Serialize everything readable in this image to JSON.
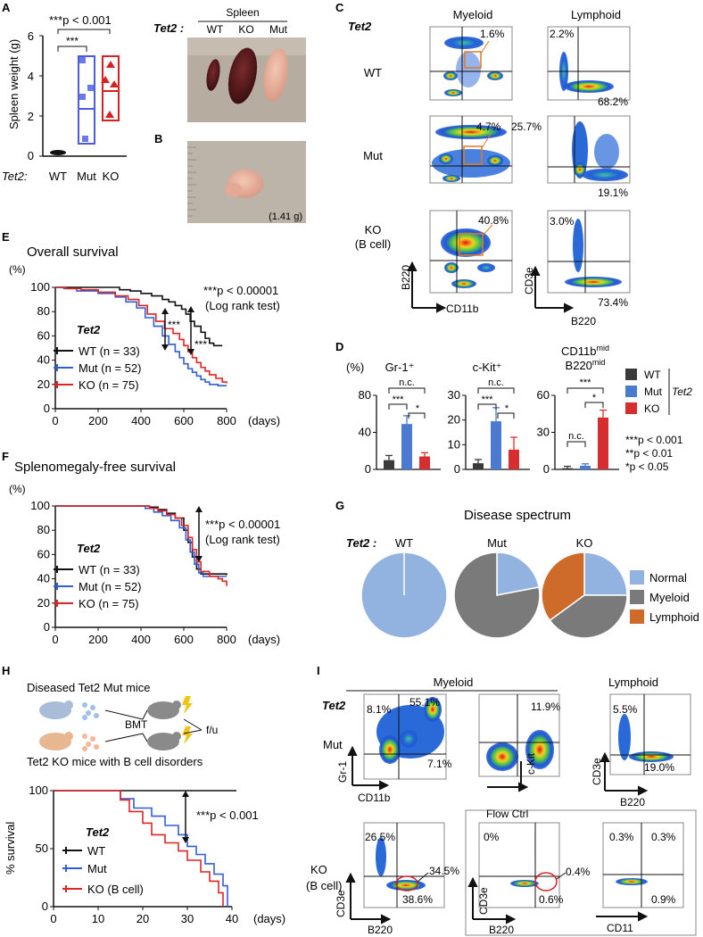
{
  "panels": {
    "A": "A",
    "B": "B",
    "C": "C",
    "D": "D",
    "E": "E",
    "F": "F",
    "G": "G",
    "H": "H",
    "I": "I"
  },
  "genotypes": {
    "wt": "WT",
    "mut": "Mut",
    "ko": "KO",
    "ko_bcell": "KO (B cell)",
    "ko_line1": "KO",
    "ko_line2": "(B cell)"
  },
  "gene": "Tet2",
  "gene_colon": "Tet2 :",
  "gene_colon2": "Tet2:",
  "colors": {
    "wt": "#111111",
    "mut": "#2f5fd8",
    "ko": "#e02424",
    "wt_bar": "#3a3a3a",
    "mut_bar": "#4a7bd0",
    "ko_bar": "#d62e2e",
    "normal": "#92b3df",
    "myeloid": "#7a7a7a",
    "lymphoid": "#cf6b2a"
  },
  "panelA": {
    "sig": "***p < 0.001",
    "sig_bracket": "***",
    "ylabel": "Spleen weight (g)",
    "yticks": [
      "0",
      "2",
      "4",
      "6"
    ],
    "xlabel_prefix": "Tet2:",
    "categories": [
      "WT",
      "Mut",
      "KO"
    ]
  },
  "photo": {
    "spleen_header": "Spleen",
    "gene_label": "Tet2 :",
    "cols": [
      "WT",
      "KO",
      "Mut"
    ],
    "weight": "(1.41 g)"
  },
  "panelC": {
    "gene": "Tet2",
    "col_myeloid": "Myeloid",
    "col_lymphoid": "Lymphoid",
    "rows": [
      "WT",
      "Mut",
      "KO",
      "(B cell)"
    ],
    "myeloid_pct": [
      "1.6%",
      "4.7%",
      "40.8%"
    ],
    "lymphoid_ul": [
      "2.2%",
      "25.7%",
      "3.0%"
    ],
    "lymphoid_lr": [
      "68.2%",
      "19.1%",
      "73.4%"
    ],
    "ax_myeloid_y": "B220",
    "ax_myeloid_x": "CD11b",
    "ax_lymphoid_y": "CD3e",
    "ax_lymphoid_x": "B220"
  },
  "chart_data": [
    {
      "id": "D",
      "type": "bar",
      "ylabel": "(%)",
      "subpanels": [
        {
          "title": "Gr-1⁺",
          "categories": [
            "WT",
            "Mut",
            "KO"
          ],
          "values": [
            10,
            49,
            14
          ],
          "errors": [
            5,
            9,
            4
          ],
          "ylim": [
            0,
            80
          ],
          "yticks": [
            "0",
            "40",
            "80"
          ],
          "sig": [
            "***",
            "*",
            "n.c."
          ]
        },
        {
          "title": "c-Kit⁺",
          "categories": [
            "WT",
            "Mut",
            "KO"
          ],
          "values": [
            2.5,
            19.5,
            8
          ],
          "errors": [
            1.5,
            5.5,
            5
          ],
          "ylim": [
            0,
            30
          ],
          "yticks": [
            "0",
            "10",
            "20",
            "30"
          ],
          "sig": [
            "***",
            "*",
            "n.c."
          ]
        },
        {
          "title": "CD11bᵐⁱᵈ B220ᵐⁱᵈ",
          "categories": [
            "WT",
            "Mut",
            "KO"
          ],
          "values": [
            1,
            3,
            42
          ],
          "errors": [
            1.5,
            1.5,
            6
          ],
          "ylim": [
            0,
            60
          ],
          "yticks": [
            "0",
            "30",
            "60"
          ],
          "sig": [
            "n.c.",
            "***",
            "*"
          ]
        }
      ],
      "legend": [
        "WT",
        "Mut",
        "KO"
      ],
      "legend_group": "Tet2",
      "sig_key": [
        "***p < 0.001",
        "**p < 0.01",
        "*p < 0.05"
      ]
    },
    {
      "id": "E",
      "type": "line",
      "title": "Overall survival",
      "ylabel": "(%)",
      "xlabel": "(days)",
      "xlim": [
        0,
        800
      ],
      "ylim": [
        0,
        100
      ],
      "xticks": [
        "0",
        "200",
        "400",
        "600",
        "800"
      ],
      "yticks": [
        "0",
        "20",
        "40",
        "60",
        "80",
        "100"
      ],
      "series": [
        {
          "name": "WT (n = 33)",
          "points": [
            [
              0,
              100
            ],
            [
              240,
              100
            ],
            [
              300,
              98
            ],
            [
              350,
              97
            ],
            [
              400,
              95
            ],
            [
              450,
              93
            ],
            [
              500,
              90
            ],
            [
              530,
              88
            ],
            [
              560,
              85
            ],
            [
              590,
              82
            ],
            [
              610,
              78
            ],
            [
              630,
              72
            ],
            [
              650,
              68
            ],
            [
              680,
              63
            ],
            [
              700,
              58
            ],
            [
              720,
              54
            ],
            [
              740,
              52
            ],
            [
              780,
              52
            ]
          ]
        },
        {
          "name": "Mut (n = 52)",
          "points": [
            [
              0,
              100
            ],
            [
              40,
              99
            ],
            [
              100,
              97
            ],
            [
              200,
              95
            ],
            [
              280,
              92
            ],
            [
              330,
              88
            ],
            [
              380,
              83
            ],
            [
              420,
              75
            ],
            [
              460,
              68
            ],
            [
              500,
              60
            ],
            [
              530,
              53
            ],
            [
              560,
              47
            ],
            [
              580,
              42
            ],
            [
              600,
              37
            ],
            [
              620,
              33
            ],
            [
              640,
              30
            ],
            [
              660,
              27
            ],
            [
              680,
              24
            ],
            [
              700,
              22
            ],
            [
              720,
              20
            ],
            [
              760,
              19
            ],
            [
              800,
              19
            ]
          ]
        },
        {
          "name": "KO (n = 75)",
          "points": [
            [
              0,
              100
            ],
            [
              50,
              99
            ],
            [
              120,
              98
            ],
            [
              200,
              96
            ],
            [
              280,
              93
            ],
            [
              340,
              90
            ],
            [
              390,
              85
            ],
            [
              430,
              78
            ],
            [
              470,
              72
            ],
            [
              510,
              66
            ],
            [
              550,
              62
            ],
            [
              580,
              57
            ],
            [
              600,
              52
            ],
            [
              620,
              47
            ],
            [
              640,
              42
            ],
            [
              660,
              38
            ],
            [
              680,
              34
            ],
            [
              700,
              31
            ],
            [
              720,
              28
            ],
            [
              750,
              25
            ],
            [
              780,
              22
            ],
            [
              800,
              21
            ]
          ]
        }
      ],
      "sig": "***p < 0.00001",
      "test": "(Log rank test)",
      "bracket": "***",
      "legend_title": "Tet2"
    },
    {
      "id": "F",
      "type": "line",
      "title": "Splenomegaly-free survival",
      "ylabel": "(%)",
      "xlabel": "(days)",
      "xlim": [
        0,
        800
      ],
      "ylim": [
        0,
        100
      ],
      "xticks": [
        "0",
        "200",
        "400",
        "600",
        "800"
      ],
      "yticks": [
        "0",
        "20",
        "40",
        "60",
        "80",
        "100"
      ],
      "series": [
        {
          "name": "WT (n = 33)",
          "points": [
            [
              0,
              100
            ],
            [
              400,
              100
            ],
            [
              440,
              99
            ],
            [
              480,
              97
            ],
            [
              520,
              94
            ],
            [
              560,
              90
            ],
            [
              600,
              80
            ],
            [
              620,
              70
            ],
            [
              640,
              58
            ],
            [
              660,
              48
            ],
            [
              680,
              44
            ],
            [
              800,
              43
            ]
          ]
        },
        {
          "name": "Mut (n = 52)",
          "points": [
            [
              0,
              100
            ],
            [
              380,
              100
            ],
            [
              420,
              98
            ],
            [
              460,
              95
            ],
            [
              500,
              92
            ],
            [
              540,
              88
            ],
            [
              580,
              82
            ],
            [
              610,
              72
            ],
            [
              630,
              62
            ],
            [
              650,
              52
            ],
            [
              670,
              45
            ],
            [
              690,
              42
            ],
            [
              800,
              42
            ]
          ]
        },
        {
          "name": "KO (n = 75)",
          "points": [
            [
              0,
              100
            ],
            [
              400,
              100
            ],
            [
              440,
              98
            ],
            [
              480,
              96
            ],
            [
              520,
              93
            ],
            [
              560,
              90
            ],
            [
              590,
              84
            ],
            [
              620,
              74
            ],
            [
              640,
              64
            ],
            [
              660,
              54
            ],
            [
              680,
              46
            ],
            [
              720,
              42
            ],
            [
              760,
              40
            ],
            [
              780,
              38
            ],
            [
              800,
              34
            ]
          ]
        }
      ],
      "sig": "***p < 0.00001",
      "test": "(Log rank test)",
      "legend_title": "Tet2"
    },
    {
      "id": "G",
      "type": "pie",
      "title": "Disease spectrum",
      "gene_label": "Tet2 :",
      "groups": [
        "WT",
        "Mut",
        "KO"
      ],
      "slices": [
        {
          "group": "WT",
          "values": [
            100,
            0,
            0
          ]
        },
        {
          "group": "Mut",
          "values": [
            22,
            78,
            0
          ]
        },
        {
          "group": "KO",
          "values": [
            25,
            40,
            35
          ]
        }
      ],
      "legend": [
        "Normal",
        "Myeloid",
        "Lymphoid"
      ]
    },
    {
      "id": "H",
      "type": "line",
      "ylabel": "% survival",
      "xlabel": "(days)",
      "xlim": [
        0,
        40
      ],
      "ylim": [
        0,
        100
      ],
      "xticks": [
        "0",
        "10",
        "20",
        "30",
        "40"
      ],
      "yticks": [
        "0",
        "50",
        "100"
      ],
      "series": [
        {
          "name": "WT",
          "points": [
            [
              0,
              100
            ],
            [
              41,
              100
            ]
          ]
        },
        {
          "name": "Mut",
          "points": [
            [
              0,
              100
            ],
            [
              15,
              100
            ],
            [
              15,
              93
            ],
            [
              18,
              93
            ],
            [
              18,
              85
            ],
            [
              22,
              85
            ],
            [
              22,
              78
            ],
            [
              25,
              78
            ],
            [
              25,
              70
            ],
            [
              28,
              70
            ],
            [
              28,
              62
            ],
            [
              30,
              62
            ],
            [
              30,
              52
            ],
            [
              32,
              52
            ],
            [
              32,
              45
            ],
            [
              34,
              45
            ],
            [
              34,
              37
            ],
            [
              36,
              37
            ],
            [
              36,
              28
            ],
            [
              38,
              28
            ],
            [
              38,
              18
            ],
            [
              39,
              18
            ],
            [
              39,
              0
            ]
          ]
        },
        {
          "name": "KO (B cell)",
          "points": [
            [
              0,
              100
            ],
            [
              15,
              100
            ],
            [
              15,
              92
            ],
            [
              17,
              92
            ],
            [
              17,
              82
            ],
            [
              20,
              82
            ],
            [
              20,
              72
            ],
            [
              22,
              72
            ],
            [
              22,
              62
            ],
            [
              25,
              62
            ],
            [
              25,
              55
            ],
            [
              28,
              55
            ],
            [
              28,
              48
            ],
            [
              30,
              48
            ],
            [
              30,
              40
            ],
            [
              33,
              40
            ],
            [
              33,
              30
            ],
            [
              35,
              30
            ],
            [
              35,
              22
            ],
            [
              37,
              22
            ],
            [
              37,
              12
            ],
            [
              38,
              12
            ],
            [
              38,
              0
            ]
          ]
        }
      ],
      "sig": "***p < 0.001",
      "legend_title": "Tet2"
    }
  ],
  "panelH": {
    "top": "Diseased Tet2 Mut mice",
    "bmt": "BMT",
    "fu": "f/u",
    "bottom": "Tet2 KO mice with B cell disorders"
  },
  "panelI": {
    "gene": "Tet2",
    "header_myeloid": "Myeloid",
    "header_lymphoid": "Lymphoid",
    "row_mut": "Mut",
    "row_ko1": "KO",
    "row_ko2": "(B cell)",
    "flow_ctrl": "Flow Ctrl",
    "mut_p1": [
      "8.1%",
      "55.1%",
      "7.1%"
    ],
    "mut_p2": [
      "11.9%"
    ],
    "mut_p3": [
      "5.5%",
      "19.0%"
    ],
    "ko_p1": [
      "26.5%",
      "34.5%",
      "38.6%"
    ],
    "ko_p2": [
      "0%",
      "0.4%",
      "0.6%"
    ],
    "ko_p3": [
      "0.3%",
      "0.3%",
      "0.9%"
    ],
    "axes": {
      "gr1": "Gr-1",
      "cd11b": "CD11b",
      "ckit": "c-Kit",
      "cd3e": "CD3e",
      "b220": "B220",
      "cd11": "CD11"
    }
  }
}
